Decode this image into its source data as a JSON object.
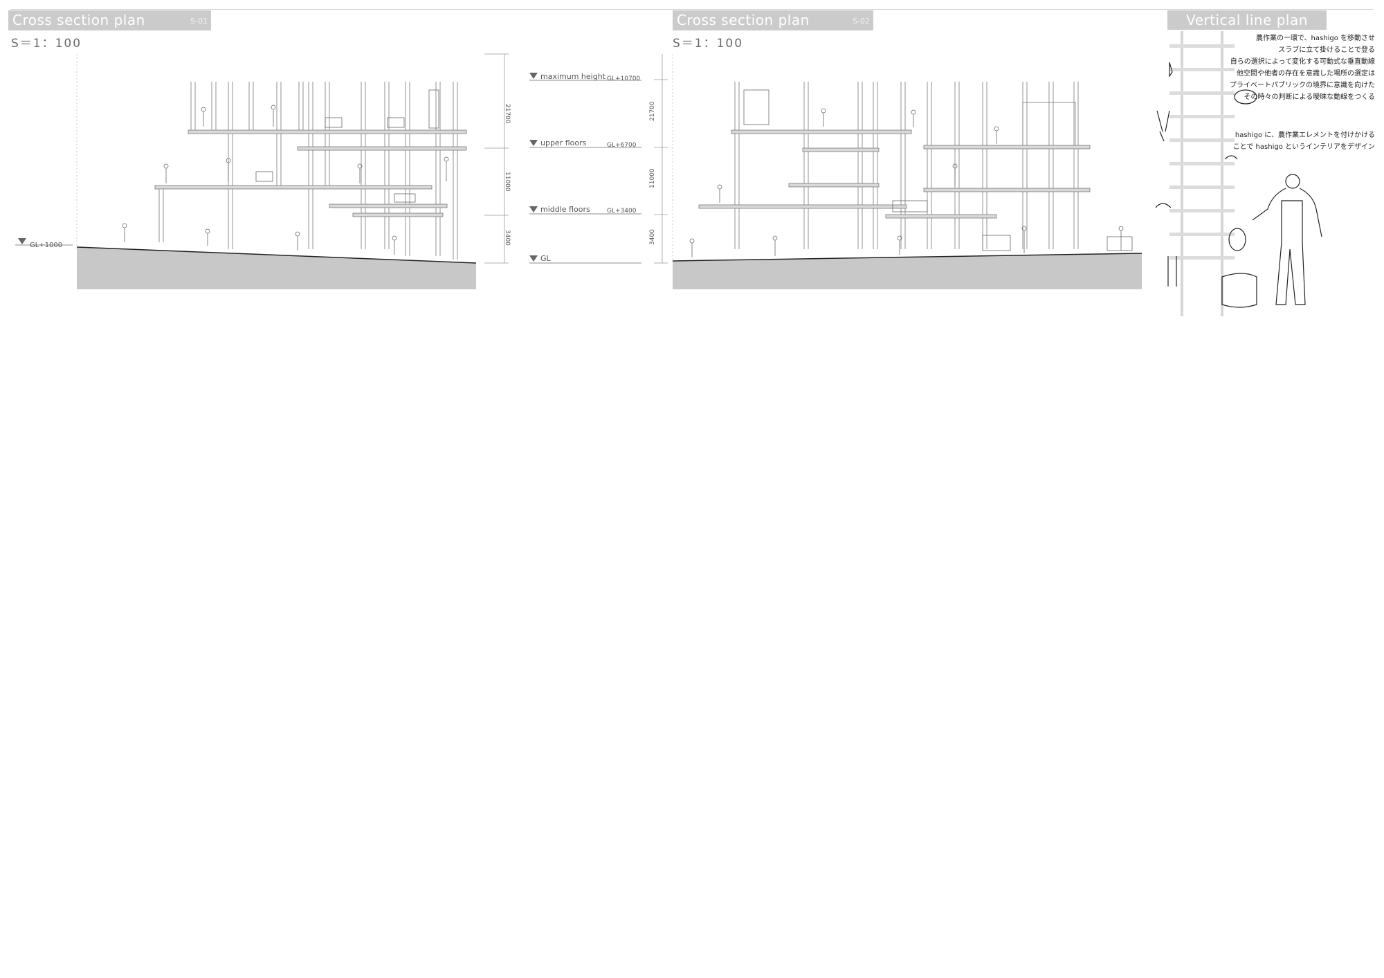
{
  "section_1": {
    "title": "Cross section plan",
    "code": "S-01",
    "scale": "S＝1：100",
    "ground_label": "GL+1000"
  },
  "section_2": {
    "title": "Cross section plan",
    "code": "S-02",
    "scale": "S＝1：100"
  },
  "levels": [
    {
      "name": "maximum height",
      "value": "GL+10700"
    },
    {
      "name": "upper floors",
      "value": "GL+6700"
    },
    {
      "name": "middle floors",
      "value": "GL+3400"
    },
    {
      "name": "GL",
      "value": ""
    }
  ],
  "dimensions": [
    "21700",
    "11000",
    "3400"
  ],
  "vertical_plan": {
    "title": "Vertical line plan",
    "notes_1": [
      "農作業の一環で、hashigo を移動させ",
      "スラブに立て掛けることで登る",
      "自らの選択によって変化する可動式な垂直動線",
      "他空間や他者の存在を意識した場所の選定は",
      "プライベートパブリックの境界に意識を向けた",
      "その時々の判断による曖昧な動線をつくる"
    ],
    "notes_2": [
      "hashigo に、農作業エレメントを付けかける",
      "ことで hashigo というインテリアをデザイン"
    ]
  },
  "colors": {
    "title_bar": "#cbcbcb",
    "ground": "#c8c8c8",
    "line": "#555555",
    "slab": "#d9d9d9"
  }
}
